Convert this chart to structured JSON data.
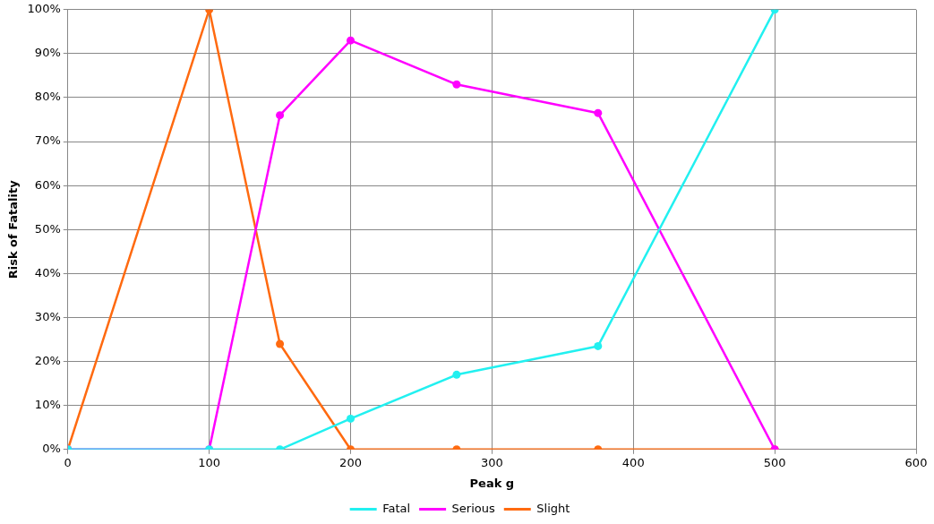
{
  "chart_data": {
    "type": "line",
    "xlabel": "Peak g",
    "ylabel": "Risk of Fatality",
    "x": [
      0,
      100,
      150,
      200,
      275,
      375,
      500
    ],
    "series": [
      {
        "name": "Fatal",
        "color": "#22f0f0",
        "values": [
          0,
          0,
          0,
          7,
          17,
          23.5,
          100
        ]
      },
      {
        "name": "Serious",
        "color": "#ff00ff",
        "values": [
          0,
          0,
          76,
          93,
          83,
          76.5,
          0
        ]
      },
      {
        "name": "Slight",
        "color": "#ff6a10",
        "values": [
          0,
          100,
          24,
          0,
          0,
          0,
          0
        ]
      }
    ],
    "xlim": [
      0,
      600
    ],
    "xticks": [
      0,
      100,
      200,
      300,
      400,
      500,
      600
    ],
    "ylim": [
      0,
      100
    ],
    "yticks": [
      {
        "value": 0,
        "label": "0%"
      },
      {
        "value": 10,
        "label": "10%"
      },
      {
        "value": 20,
        "label": "20%"
      },
      {
        "value": 30,
        "label": "30%"
      },
      {
        "value": 40,
        "label": "40%"
      },
      {
        "value": 50,
        "label": "50%"
      },
      {
        "value": 60,
        "label": "60%"
      },
      {
        "value": 70,
        "label": "70%"
      },
      {
        "value": 80,
        "label": "80%"
      },
      {
        "value": 90,
        "label": "90%"
      },
      {
        "value": 100,
        "label": "100%"
      }
    ],
    "grid": true,
    "legend": "bottom",
    "marker": "circle",
    "line_style": "solid"
  }
}
